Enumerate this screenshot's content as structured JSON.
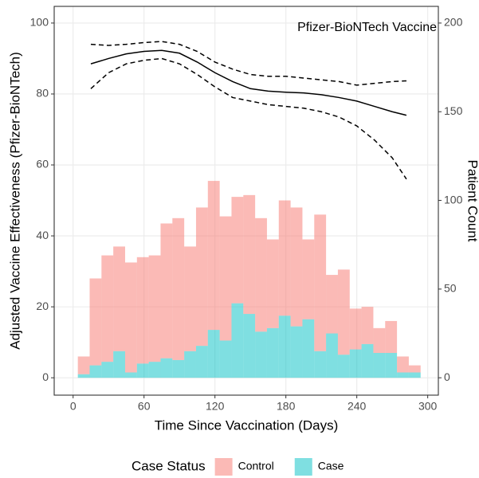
{
  "chart_data": {
    "type": "histogram",
    "annotation": "Pfizer-BioNTech Vaccine",
    "xlabel": "Time Since Vaccination (Days)",
    "ylabel": "Adjusted Vaccine Effectiveness (Pfizer-BioNTech)",
    "y2label": "Patient Count",
    "legend_title": "Case Status",
    "legend_position": "bottom",
    "stacked": true,
    "alpha": 0.5,
    "grid": true,
    "xlim": [
      -16,
      309
    ],
    "xticks": [
      0,
      60,
      120,
      180,
      240,
      300
    ],
    "ylim": [
      -4.9,
      104.7
    ],
    "yticks": [
      0,
      20,
      40,
      60,
      80,
      100
    ],
    "y2lim": [
      -9.8,
      209.4
    ],
    "y2ticks": [
      0,
      50,
      100,
      150,
      200
    ],
    "bins": [
      4,
      14,
      24,
      34,
      44,
      54,
      64,
      74,
      84,
      94,
      104,
      114,
      124,
      134,
      144,
      154,
      164,
      174,
      184,
      194,
      204,
      214,
      224,
      234,
      244,
      254,
      264,
      274,
      284,
      294
    ],
    "series": [
      {
        "name": "Control",
        "color": "#F8766D",
        "axis": "y2",
        "values": [
          10,
          49,
          60,
          59,
          62,
          60,
          60,
          76,
          80,
          59,
          78,
          84,
          70,
          60,
          67,
          64,
          50,
          65,
          67,
          45,
          77,
          33,
          48,
          23,
          21,
          14,
          18,
          9,
          4
        ]
      },
      {
        "name": "Case",
        "color": "#00BFC4",
        "axis": "y2",
        "values": [
          2,
          7,
          9,
          15,
          3,
          8,
          9,
          11,
          10,
          15,
          18,
          27,
          21,
          42,
          36,
          26,
          28,
          35,
          29,
          33,
          15,
          25,
          13,
          16,
          19,
          14,
          14,
          3,
          3
        ]
      }
    ],
    "effectiveness": {
      "color": "#000000",
      "x": [
        15,
        30,
        45,
        60,
        75,
        90,
        105,
        120,
        135,
        150,
        165,
        180,
        195,
        210,
        225,
        240,
        255,
        270,
        282
      ],
      "values": [
        88.5,
        90,
        91.3,
        92,
        92.3,
        91.5,
        89,
        86,
        83.5,
        81.5,
        80.8,
        80.5,
        80.3,
        79.8,
        79,
        78,
        76.5,
        75,
        74
      ],
      "upper": [
        94,
        93.7,
        94,
        94.5,
        94.8,
        94,
        92,
        89,
        87,
        85.5,
        85,
        85,
        84.5,
        84,
        83.5,
        82.5,
        83,
        83.5,
        83.7
      ],
      "lower": [
        81.5,
        86,
        88.5,
        89.5,
        90,
        88.5,
        85.5,
        82,
        79,
        78,
        77,
        76.5,
        76,
        75,
        73.5,
        71,
        67,
        62,
        56
      ]
    }
  }
}
